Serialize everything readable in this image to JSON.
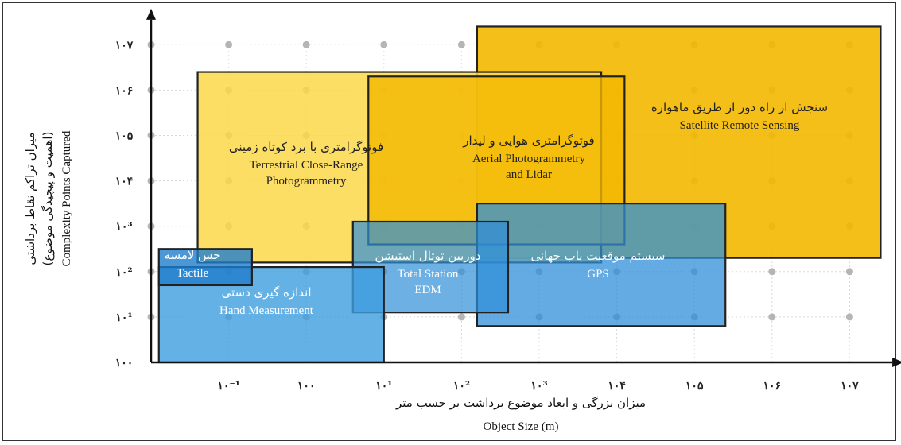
{
  "chart_data": {
    "type": "region-diagram",
    "x_axis": {
      "title_fa": "میزان بزرگی و ابعاد موضوع برداشت بر حسب متر",
      "title_en": "Object Size (m)",
      "tick_labels": [
        "۱۰⁻¹",
        "۱۰۰",
        "۱۰¹",
        "۱۰²",
        "۱۰³",
        "۱۰۴",
        "۱۰۵",
        "۱۰۶",
        "۱۰۷"
      ],
      "range": [
        -2,
        7.5
      ]
    },
    "y_axis": {
      "title_fa": "میزان تراکم نقاط برداشتی",
      "subtitle_fa": "(اهمیت و پیچیدگی موضوع)",
      "title_en": "Complexity Points Captured",
      "tick_labels": [
        "۱۰۰",
        "۱۰¹",
        "۱۰²",
        "۱۰³",
        "۱۰۴",
        "۱۰۵",
        "۱۰۶",
        "۱۰۷"
      ],
      "range": [
        0,
        7.5
      ]
    },
    "grid": "dotted",
    "regions": [
      {
        "id": "satellite",
        "label_fa": "سنجش از راه دور از طریق ماهواره",
        "label_en": "Satellite Remote Sensing",
        "x": [
          2.2,
          7.4
        ],
        "y": [
          2.3,
          7.4
        ],
        "fill": "#f3b800",
        "opacity": 0.9,
        "text_color": "#222"
      },
      {
        "id": "terrestrial",
        "label_fa": "فوتوگرامتری با برد کوتاه زمینی",
        "label_en": "Terrestrial Close-Range Photogrammetry",
        "x": [
          -1.4,
          3.8
        ],
        "y": [
          2.2,
          6.4
        ],
        "fill": "#fdd84a",
        "opacity": 0.85,
        "text_color": "#222"
      },
      {
        "id": "aerial",
        "label_fa": "فوتوگرامتری هوایی و لیدار",
        "label_en": "Aerial Photogrammetry and Lidar",
        "x": [
          0.8,
          4.1
        ],
        "y": [
          2.6,
          6.3
        ],
        "fill": "#f3b800",
        "opacity": 0.8,
        "text_color": "#222"
      },
      {
        "id": "gps",
        "label_fa": "سیستم موقعیت یاب جهانی",
        "label_en": "GPS",
        "x": [
          2.2,
          5.4
        ],
        "y": [
          0.8,
          3.5
        ],
        "fill": "#2f8fd8",
        "opacity": 0.75,
        "text_color": "#fff"
      },
      {
        "id": "total-station",
        "label_fa": "دوربین توتال استیشن",
        "label_en": "Total Station EDM",
        "x": [
          0.6,
          2.6
        ],
        "y": [
          1.1,
          3.1
        ],
        "fill": "#2f8fd8",
        "opacity": 0.7,
        "text_color": "#fff"
      },
      {
        "id": "hand",
        "label_fa": "اندازه گیری دستی",
        "label_en": "Hand Measurement",
        "x": [
          -1.9,
          1.0
        ],
        "y": [
          0.0,
          2.1
        ],
        "fill": "#3d9ee0",
        "opacity": 0.8,
        "text_color": "#fff"
      },
      {
        "id": "tactile",
        "label_fa": "حس لامسه",
        "label_en": "Tactile",
        "x": [
          -1.9,
          -0.7
        ],
        "y": [
          1.7,
          2.5
        ],
        "fill": "#1f7dcc",
        "opacity": 0.8,
        "text_color": "#fff"
      }
    ],
    "colors": {
      "axis": "#111111",
      "grid_dot": "#b5b5b5",
      "grid_line": "#d8d8d8",
      "border": "#222222"
    }
  }
}
